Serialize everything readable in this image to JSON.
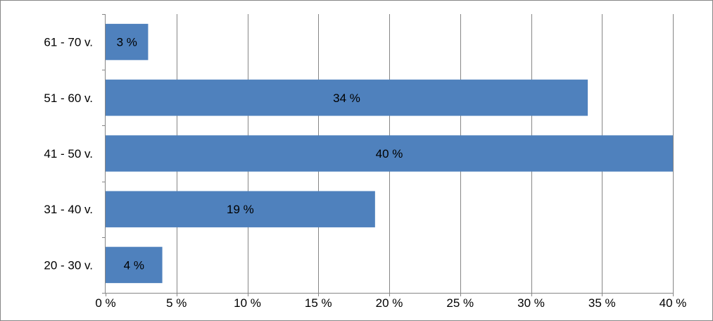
{
  "chart_data": {
    "type": "bar",
    "orientation": "horizontal",
    "title": "",
    "xlabel": "",
    "ylabel": "",
    "categories": [
      "20 - 30 v.",
      "31 - 40 v.",
      "41 - 50 v.",
      "51 - 60 v.",
      "61 - 70 v."
    ],
    "values": [
      4,
      19,
      40,
      34,
      3
    ],
    "data_labels": [
      "4 %",
      "19 %",
      "40 %",
      "34 %",
      "3 %"
    ],
    "xlim": [
      0,
      40
    ],
    "x_ticks": [
      0,
      5,
      10,
      15,
      20,
      25,
      30,
      35,
      40
    ],
    "x_tick_labels": [
      "0 %",
      "5 %",
      "10 %",
      "15 %",
      "20 %",
      "25 %",
      "30 %",
      "35 %",
      "40 %"
    ],
    "grid": "vertical",
    "legend": "none",
    "colors": {
      "bar": "#4F81BD",
      "grid": "#868686",
      "frame": "#868686",
      "text": "#000000"
    }
  }
}
